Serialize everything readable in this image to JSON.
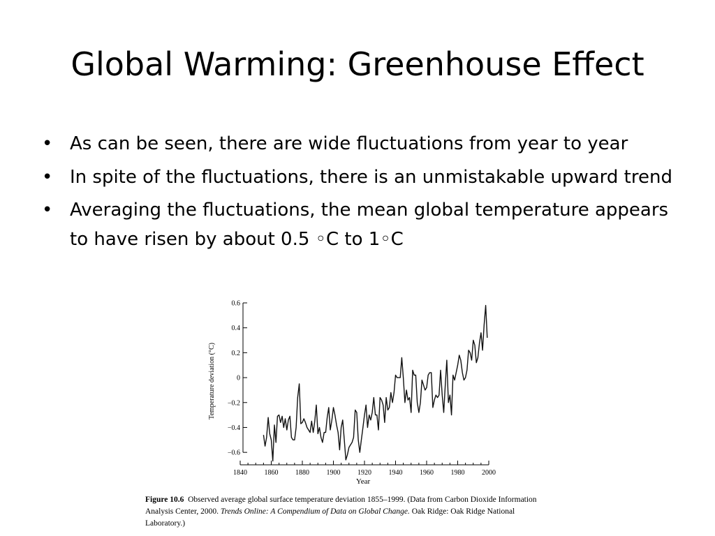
{
  "slide": {
    "title": "Global Warming: Greenhouse Effect",
    "bullets": [
      "As can be seen, there are wide fluctuations from year to year",
      "In spite of the fluctuations, there is an unmistakable upward trend",
      "Averaging the fluctuations, the mean global temperature appears to have risen by about 0.5 ◦C to 1◦C"
    ],
    "bullet_glyph": "•"
  },
  "figure": {
    "label": "Figure 10.6",
    "caption_plain": "Observed average global surface temperature deviation 1855–1999. (Data from Carbon Dioxide Information Analysis Center, 2000.",
    "caption_italic": "Trends Online: A Compendium of Data on Global Change.",
    "caption_tail": "Oak Ridge: Oak Ridge National Laboratory.)"
  },
  "chart_data": {
    "type": "line",
    "xlabel": "Year",
    "ylabel": "Temperature deviation (°C)",
    "xlim": [
      1840,
      2000
    ],
    "ylim": [
      -0.7,
      0.6
    ],
    "xticks": [
      1840,
      1860,
      1880,
      1900,
      1920,
      1940,
      1960,
      1980,
      2000
    ],
    "yticks": [
      0.6,
      0.4,
      0.2,
      0,
      -0.2,
      -0.4,
      -0.6
    ],
    "ytick_labels": [
      "0.6",
      "0.4",
      "0.2",
      "0",
      "−0.2",
      "−0.4",
      "−0.6"
    ],
    "x": [
      1855,
      1856,
      1857,
      1858,
      1859,
      1860,
      1861,
      1862,
      1863,
      1864,
      1865,
      1866,
      1867,
      1868,
      1869,
      1870,
      1871,
      1872,
      1873,
      1874,
      1875,
      1876,
      1877,
      1878,
      1879,
      1880,
      1881,
      1882,
      1883,
      1884,
      1885,
      1886,
      1887,
      1888,
      1889,
      1890,
      1891,
      1892,
      1893,
      1894,
      1895,
      1896,
      1897,
      1898,
      1899,
      1900,
      1901,
      1902,
      1903,
      1904,
      1905,
      1906,
      1907,
      1908,
      1909,
      1910,
      1911,
      1912,
      1913,
      1914,
      1915,
      1916,
      1917,
      1918,
      1919,
      1920,
      1921,
      1922,
      1923,
      1924,
      1925,
      1926,
      1927,
      1928,
      1929,
      1930,
      1931,
      1932,
      1933,
      1934,
      1935,
      1936,
      1937,
      1938,
      1939,
      1940,
      1941,
      1942,
      1943,
      1944,
      1945,
      1946,
      1947,
      1948,
      1949,
      1950,
      1951,
      1952,
      1953,
      1954,
      1955,
      1956,
      1957,
      1958,
      1959,
      1960,
      1961,
      1962,
      1963,
      1964,
      1965,
      1966,
      1967,
      1968,
      1969,
      1970,
      1971,
      1972,
      1973,
      1974,
      1975,
      1976,
      1977,
      1978,
      1979,
      1980,
      1981,
      1982,
      1983,
      1984,
      1985,
      1986,
      1987,
      1988,
      1989,
      1990,
      1991,
      1992,
      1993,
      1994,
      1995,
      1996,
      1997,
      1998,
      1999
    ],
    "y": [
      -0.46,
      -0.55,
      -0.48,
      -0.32,
      -0.45,
      -0.5,
      -0.67,
      -0.38,
      -0.52,
      -0.31,
      -0.3,
      -0.36,
      -0.31,
      -0.4,
      -0.33,
      -0.42,
      -0.34,
      -0.31,
      -0.48,
      -0.5,
      -0.5,
      -0.4,
      -0.16,
      -0.05,
      -0.37,
      -0.36,
      -0.33,
      -0.36,
      -0.4,
      -0.42,
      -0.44,
      -0.35,
      -0.44,
      -0.35,
      -0.22,
      -0.45,
      -0.4,
      -0.48,
      -0.52,
      -0.44,
      -0.44,
      -0.32,
      -0.24,
      -0.42,
      -0.34,
      -0.24,
      -0.3,
      -0.38,
      -0.44,
      -0.58,
      -0.4,
      -0.34,
      -0.5,
      -0.66,
      -0.62,
      -0.56,
      -0.54,
      -0.52,
      -0.48,
      -0.26,
      -0.28,
      -0.5,
      -0.6,
      -0.5,
      -0.4,
      -0.3,
      -0.22,
      -0.4,
      -0.3,
      -0.34,
      -0.28,
      -0.16,
      -0.3,
      -0.3,
      -0.42,
      -0.16,
      -0.18,
      -0.22,
      -0.36,
      -0.16,
      -0.26,
      -0.24,
      -0.12,
      -0.2,
      -0.12,
      0.02,
      0.0,
      0.0,
      0.0,
      0.16,
      0.0,
      -0.2,
      -0.1,
      -0.18,
      -0.16,
      -0.28,
      0.06,
      0.02,
      0.02,
      -0.2,
      -0.28,
      -0.2,
      -0.02,
      -0.06,
      -0.1,
      -0.08,
      0.02,
      0.04,
      0.04,
      -0.24,
      -0.18,
      -0.14,
      -0.16,
      -0.14,
      0.06,
      -0.14,
      -0.28,
      -0.06,
      0.14,
      -0.2,
      -0.14,
      -0.3,
      0.02,
      -0.02,
      0.04,
      0.1,
      0.18,
      0.14,
      0.04,
      -0.02,
      0.0,
      0.06,
      0.22,
      0.2,
      0.14,
      0.3,
      0.26,
      0.12,
      0.16,
      0.28,
      0.36,
      0.22,
      0.42,
      0.58,
      0.32
    ]
  }
}
